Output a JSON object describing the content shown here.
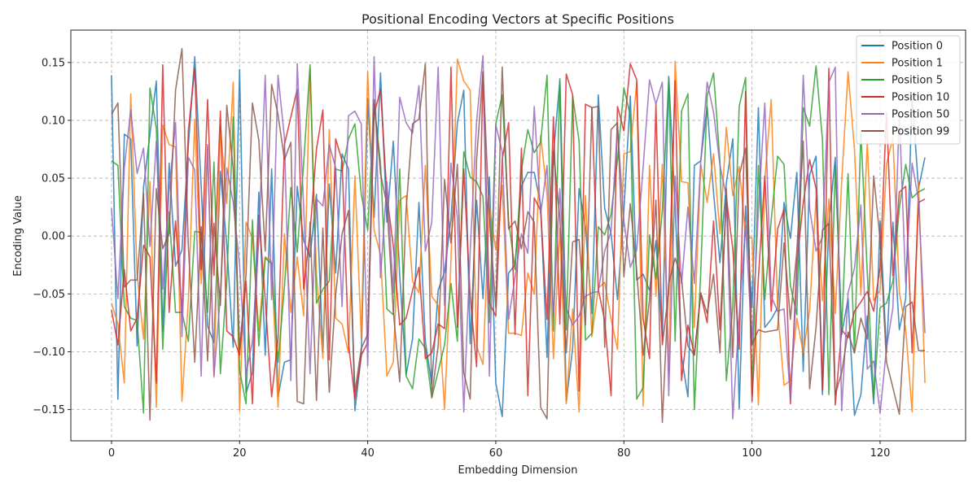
{
  "chart_data": {
    "type": "line",
    "title": "Positional Encoding Vectors at Specific Positions",
    "xlabel": "Embedding Dimension",
    "ylabel": "Encoding Value",
    "xlim": [
      -6.35,
      133.35
    ],
    "ylim": [
      -0.177,
      0.178
    ],
    "xticks": [
      0,
      20,
      40,
      60,
      80,
      100,
      120
    ],
    "xtick_labels": [
      "0",
      "20",
      "40",
      "60",
      "80",
      "100",
      "120"
    ],
    "yticks": [
      -0.15,
      -0.1,
      -0.05,
      0.0,
      0.05,
      0.1,
      0.15
    ],
    "ytick_labels": [
      "−0.15",
      "−0.10",
      "−0.05",
      "0.00",
      "0.05",
      "0.10",
      "0.15"
    ],
    "grid": true,
    "legend_position": "top-right",
    "x": [
      0,
      1,
      2,
      3,
      4,
      5,
      6,
      7,
      8,
      9,
      10,
      11,
      12,
      13,
      14,
      15,
      16,
      17,
      18,
      19,
      20,
      21,
      22,
      23,
      24,
      25,
      26,
      27,
      28,
      29,
      30,
      31,
      32,
      33,
      34,
      35,
      36,
      37,
      38,
      39,
      40,
      41,
      42,
      43,
      44,
      45,
      46,
      47,
      48,
      49,
      50,
      51,
      52,
      53,
      54,
      55,
      56,
      57,
      58,
      59,
      60,
      61,
      62,
      63,
      64,
      65,
      66,
      67,
      68,
      69,
      70,
      71,
      72,
      73,
      74,
      75,
      76,
      77,
      78,
      79,
      80,
      81,
      82,
      83,
      84,
      85,
      86,
      87,
      88,
      89,
      90,
      91,
      92,
      93,
      94,
      95,
      96,
      97,
      98,
      99,
      100,
      101,
      102,
      103,
      104,
      105,
      106,
      107,
      108,
      109,
      110,
      111,
      112,
      113,
      114,
      115,
      116,
      117,
      118,
      119,
      120,
      121,
      122,
      123,
      124,
      125,
      126,
      127
    ],
    "series": [
      {
        "name": "Position 0",
        "color": "#1f77b4",
        "values": [
          0.139,
          -0.141,
          0.088,
          0.084,
          -0.095,
          0.042,
          0.088,
          0.134,
          -0.082,
          0.063,
          -0.026,
          -0.012,
          0.078,
          0.155,
          0.043,
          -0.078,
          -0.092,
          0.056,
          -0.008,
          -0.096,
          0.144,
          -0.136,
          -0.118,
          0.038,
          -0.103,
          0.058,
          -0.139,
          -0.109,
          -0.107,
          0.043,
          -0.004,
          -0.018,
          0.036,
          -0.1,
          0.045,
          -0.032,
          0.071,
          0.058,
          -0.151,
          -0.103,
          0.119,
          0.016,
          0.141,
          0.012,
          0.082,
          -0.034,
          -0.12,
          -0.089,
          0.029,
          -0.091,
          -0.128,
          -0.047,
          -0.031,
          0.015,
          0.098,
          0.126,
          -0.093,
          0.031,
          -0.054,
          0.051,
          -0.127,
          -0.156,
          -0.032,
          -0.025,
          0.043,
          0.055,
          0.055,
          0.027,
          -0.105,
          0.071,
          0.134,
          -0.143,
          -0.097,
          0.041,
          0.008,
          -0.067,
          0.122,
          0.024,
          0.002,
          -0.055,
          0.022,
          0.121,
          -0.038,
          -0.033,
          -0.047,
          -0.004,
          -0.087,
          0.138,
          0.025,
          -0.104,
          -0.139,
          0.061,
          0.065,
          0.112,
          0.037,
          -0.023,
          0.046,
          0.084,
          -0.149,
          0.026,
          -0.062,
          0.111,
          -0.079,
          -0.072,
          -0.062,
          0.029,
          -0.002,
          0.055,
          -0.117,
          0.053,
          0.069,
          -0.137,
          0.011,
          0.068,
          -0.085,
          -0.054,
          -0.155,
          -0.137,
          -0.069,
          -0.145,
          0.013,
          -0.101,
          0.012,
          -0.081,
          -0.054,
          0.121,
          0.041,
          0.068
        ]
      },
      {
        "name": "Position 1",
        "color": "#ff7f0e",
        "values": [
          -0.058,
          -0.076,
          -0.127,
          0.123,
          -0.033,
          -0.089,
          0.047,
          -0.148,
          0.096,
          0.079,
          0.077,
          -0.143,
          -0.055,
          0.101,
          -0.041,
          0.077,
          -0.122,
          0.095,
          0.028,
          0.133,
          -0.151,
          0.012,
          -0.002,
          -0.082,
          -0.018,
          -0.022,
          -0.148,
          0.002,
          -0.066,
          -0.018,
          -0.069,
          0.145,
          -0.033,
          -0.106,
          0.092,
          -0.071,
          -0.076,
          -0.101,
          0.052,
          -0.089,
          0.142,
          0.005,
          -0.016,
          -0.121,
          -0.109,
          0.031,
          0.035,
          -0.039,
          -0.049,
          0.061,
          -0.052,
          -0.06,
          -0.15,
          -0.021,
          0.153,
          0.134,
          0.126,
          -0.095,
          -0.111,
          0.026,
          -0.012,
          0.044,
          -0.084,
          -0.084,
          -0.086,
          -0.032,
          -0.05,
          0.087,
          0.036,
          -0.106,
          0.007,
          -0.145,
          -0.063,
          -0.152,
          0.035,
          -0.087,
          -0.045,
          -0.04,
          -0.072,
          -0.098,
          0.071,
          0.073,
          0.133,
          -0.147,
          0.061,
          -0.052,
          0.062,
          -0.117,
          0.151,
          0.047,
          0.046,
          -0.079,
          0.062,
          0.029,
          0.071,
          0.002,
          0.094,
          0.035,
          0.06,
          0.0,
          -0.002,
          -0.146,
          0.049,
          0.118,
          -0.063,
          -0.129,
          -0.125,
          -0.071,
          -0.101,
          -0.064,
          0.033,
          -0.056,
          0.032,
          -0.067,
          0.047,
          0.142,
          0.075,
          -0.051,
          0.082,
          -0.056,
          -0.047,
          0.062,
          0.085,
          -0.048,
          -0.081,
          -0.152,
          0.047,
          -0.127
        ]
      },
      {
        "name": "Position 5",
        "color": "#2ca02c",
        "values": [
          0.065,
          0.061,
          -0.061,
          -0.071,
          -0.073,
          -0.153,
          0.128,
          0.093,
          -0.098,
          0.021,
          -0.066,
          -0.066,
          -0.091,
          0.004,
          0.003,
          -0.066,
          0.064,
          -0.119,
          -0.039,
          0.103,
          -0.116,
          -0.145,
          0.014,
          -0.095,
          -0.019,
          -0.024,
          -0.109,
          -0.044,
          0.042,
          -0.014,
          0.063,
          0.148,
          -0.058,
          -0.046,
          -0.039,
          0.058,
          0.056,
          0.084,
          0.097,
          0.036,
          0.005,
          0.114,
          0.063,
          -0.063,
          -0.068,
          0.058,
          -0.121,
          -0.132,
          -0.089,
          -0.097,
          -0.14,
          -0.117,
          -0.094,
          -0.041,
          -0.091,
          0.073,
          0.051,
          0.047,
          0.034,
          -0.075,
          0.097,
          0.122,
          0.013,
          -0.029,
          0.057,
          0.092,
          0.072,
          0.081,
          0.139,
          -0.082,
          0.136,
          -0.081,
          0.121,
          0.082,
          -0.09,
          -0.084,
          0.008,
          0.001,
          0.019,
          0.066,
          0.128,
          0.104,
          -0.141,
          -0.131,
          0.001,
          -0.037,
          0.022,
          0.135,
          -0.091,
          0.108,
          0.123,
          -0.15,
          -0.031,
          0.121,
          0.141,
          0.064,
          -0.125,
          -0.061,
          0.112,
          0.137,
          -0.137,
          0.061,
          -0.055,
          0.014,
          0.069,
          0.062,
          -0.043,
          -0.068,
          0.111,
          0.095,
          0.147,
          0.083,
          -0.137,
          0.061,
          -0.082,
          0.054,
          -0.101,
          0.091,
          -0.032,
          -0.14,
          -0.062,
          -0.058,
          -0.039,
          0.024,
          0.062,
          0.033,
          0.038,
          0.041
        ]
      },
      {
        "name": "Position 10",
        "color": "#d62728",
        "values": [
          -0.064,
          -0.094,
          -0.029,
          -0.082,
          -0.071,
          -0.008,
          -0.018,
          -0.127,
          0.148,
          -0.066,
          0.013,
          -0.066,
          0.091,
          0.145,
          -0.029,
          0.118,
          -0.034,
          0.108,
          -0.082,
          -0.087,
          -0.103,
          -0.039,
          -0.145,
          0.018,
          -0.055,
          -0.139,
          -0.089,
          0.079,
          0.103,
          0.127,
          -0.046,
          0.004,
          0.075,
          0.109,
          -0.107,
          0.084,
          0.065,
          -0.093,
          -0.141,
          -0.103,
          -0.092,
          0.105,
          0.127,
          0.035,
          -0.009,
          -0.077,
          -0.071,
          -0.047,
          -0.027,
          -0.106,
          -0.101,
          -0.076,
          -0.08,
          0.146,
          -0.079,
          0.058,
          -0.052,
          -0.113,
          0.142,
          -0.058,
          -0.069,
          0.066,
          0.098,
          -0.085,
          0.076,
          -0.138,
          0.033,
          0.022,
          -0.072,
          0.103,
          -0.076,
          0.14,
          0.122,
          -0.134,
          0.114,
          0.111,
          -0.046,
          -0.073,
          -0.138,
          0.112,
          0.091,
          0.149,
          0.135,
          -0.071,
          -0.106,
          0.114,
          -0.094,
          -0.048,
          0.134,
          -0.125,
          -0.077,
          -0.103,
          -0.05,
          -0.075,
          0.013,
          -0.081,
          0.033,
          -0.011,
          -0.098,
          0.125,
          -0.143,
          -0.036,
          0.052,
          -0.065,
          0.006,
          0.023,
          -0.145,
          -0.023,
          0.029,
          0.066,
          0.041,
          -0.133,
          0.145,
          -0.146,
          -0.081,
          -0.088,
          -0.065,
          -0.057,
          -0.048,
          -0.065,
          -0.027,
          0.107,
          -0.034,
          0.038,
          0.043,
          -0.101,
          0.029,
          0.032
        ]
      },
      {
        "name": "Position 50",
        "color": "#9467bd",
        "values": [
          0.024,
          -0.054,
          0.059,
          0.109,
          0.054,
          0.076,
          -0.009,
          0.082,
          -0.046,
          0.039,
          0.098,
          -0.087,
          0.068,
          0.057,
          -0.121,
          0.079,
          -0.121,
          -0.051,
          0.059,
          0.029,
          -0.025,
          -0.119,
          -0.091,
          -0.003,
          0.139,
          -0.055,
          0.139,
          0.085,
          -0.125,
          0.149,
          0.026,
          -0.119,
          0.032,
          0.026,
          0.079,
          0.059,
          -0.061,
          0.104,
          0.108,
          0.097,
          -0.112,
          0.155,
          -0.036,
          0.047,
          -0.049,
          0.12,
          0.098,
          0.089,
          0.13,
          -0.013,
          0.012,
          0.146,
          -0.06,
          0.063,
          0.016,
          -0.152,
          -0.013,
          0.099,
          0.156,
          -0.121,
          0.096,
          0.073,
          -0.072,
          -0.036,
          0.002,
          -0.015,
          0.112,
          0.019,
          0.061,
          -0.069,
          0.041,
          -0.062,
          -0.077,
          -0.069,
          -0.052,
          -0.049,
          -0.048,
          -0.013,
          0.004,
          0.095,
          0.013,
          -0.027,
          -0.012,
          0.059,
          0.135,
          0.114,
          0.133,
          -0.138,
          0.052,
          -0.041,
          0.025,
          -0.041,
          0.065,
          0.133,
          0.107,
          0.061,
          0.034,
          -0.158,
          -0.068,
          0.009,
          -0.093,
          0.023,
          0.115,
          -0.052,
          -0.065,
          -0.063,
          -0.141,
          -0.039,
          0.139,
          0.024,
          -0.013,
          -0.001,
          0.133,
          0.146,
          -0.151,
          -0.049,
          -0.028,
          0.027,
          -0.115,
          -0.108,
          -0.153,
          -0.097,
          -0.062,
          0.105,
          -0.041,
          0.063,
          0.031,
          -0.084
        ]
      },
      {
        "name": "Position 99",
        "color": "#8c564b",
        "values": [
          0.105,
          0.115,
          -0.044,
          -0.038,
          -0.038,
          0.037,
          -0.159,
          0.041,
          -0.011,
          0.002,
          0.126,
          0.162,
          -0.009,
          -0.109,
          0.008,
          -0.108,
          0.011,
          -0.06,
          0.113,
          0.058,
          -0.098,
          -0.034,
          0.115,
          0.083,
          -0.013,
          0.131,
          0.105,
          0.066,
          0.081,
          -0.143,
          -0.145,
          0.012,
          -0.142,
          0.007,
          -0.135,
          -0.051,
          0.002,
          0.022,
          -0.135,
          -0.097,
          -0.085,
          0.118,
          0.054,
          0.027,
          -0.065,
          -0.126,
          0.023,
          0.097,
          0.101,
          0.149,
          -0.139,
          -0.095,
          0.049,
          -0.006,
          0.062,
          -0.118,
          -0.141,
          0.066,
          0.142,
          0.015,
          -0.062,
          0.146,
          0.006,
          0.013,
          -0.011,
          0.021,
          0.012,
          -0.148,
          -0.158,
          0.073,
          0.016,
          -0.101,
          -0.005,
          -0.003,
          -0.077,
          0.111,
          0.112,
          -0.096,
          0.092,
          0.098,
          -0.035,
          0.028,
          -0.031,
          -0.103,
          -0.055,
          0.031,
          -0.161,
          -0.041,
          -0.019,
          -0.037,
          -0.095,
          -0.103,
          -0.049,
          -0.067,
          -0.033,
          -0.101,
          0.041,
          -0.105,
          0.052,
          0.076,
          -0.094,
          -0.081,
          -0.083,
          -0.082,
          -0.081,
          -0.006,
          -0.072,
          -0.013,
          0.082,
          -0.132,
          -0.079,
          0.005,
          0.011,
          -0.137,
          -0.118,
          -0.083,
          -0.101,
          -0.071,
          -0.089,
          0.052,
          -0.003,
          -0.109,
          -0.131,
          -0.154,
          -0.061,
          -0.057,
          -0.099,
          -0.099
        ]
      }
    ]
  }
}
